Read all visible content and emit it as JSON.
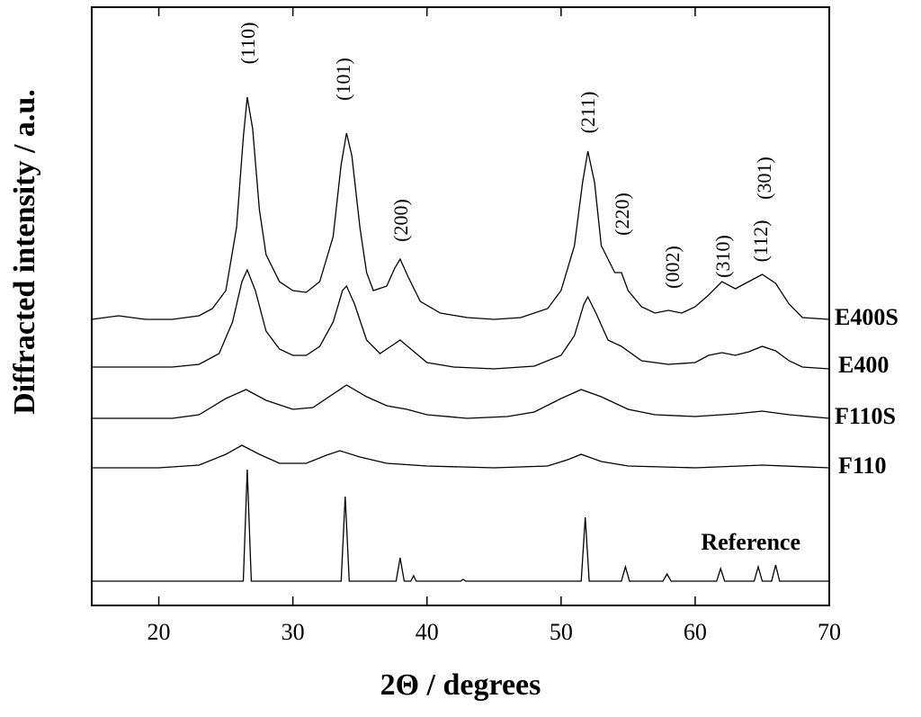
{
  "chart_data": {
    "type": "line",
    "xlabel": "2Θ / degrees",
    "ylabel": "Diffracted intensity / a.u.",
    "xlim": [
      15,
      70
    ],
    "xticks": [
      20,
      30,
      40,
      50,
      60,
      70
    ],
    "ylim": [
      0,
      665
    ],
    "color": "#000000",
    "annotations": [
      "(110)",
      "(101)",
      "(200)",
      "(211)",
      "(220)",
      "(002)",
      "(310)",
      "(112)",
      "(301)"
    ],
    "series": [
      {
        "name": "E400S",
        "x": [
          15,
          17,
          19,
          21,
          23,
          24,
          25,
          25.8,
          26.3,
          26.6,
          27,
          27.5,
          28,
          29,
          30,
          31,
          32,
          33,
          33.6,
          34,
          34.4,
          35,
          35.5,
          36,
          37,
          37.6,
          38,
          38.6,
          39.5,
          41,
          43,
          45,
          47,
          49,
          50,
          51,
          51.6,
          52,
          52.5,
          53,
          54,
          54.5,
          55,
          56,
          57,
          58,
          59,
          60,
          61,
          62,
          63,
          64,
          65,
          66,
          67,
          68,
          70
        ],
        "values": [
          318,
          322,
          318,
          318,
          322,
          330,
          350,
          420,
          520,
          565,
          530,
          440,
          390,
          360,
          350,
          348,
          360,
          410,
          490,
          525,
          500,
          420,
          370,
          350,
          355,
          375,
          385,
          365,
          338,
          325,
          320,
          318,
          320,
          330,
          350,
          400,
          470,
          505,
          470,
          400,
          370,
          370,
          350,
          332,
          325,
          328,
          325,
          332,
          345,
          360,
          352,
          360,
          368,
          358,
          335,
          320,
          318
        ]
      },
      {
        "name": "E400",
        "x": [
          15,
          18,
          21,
          23,
          24.5,
          25.5,
          26.2,
          26.6,
          27.2,
          28,
          29,
          30,
          31,
          32,
          33,
          33.7,
          34,
          34.6,
          35.5,
          36.5,
          37.5,
          38,
          38.8,
          40,
          42,
          45,
          48,
          50,
          51,
          51.7,
          52,
          52.6,
          53.5,
          54.5,
          56,
          58,
          60,
          61,
          62,
          63,
          64,
          65,
          66,
          67,
          68,
          70
        ],
        "values": [
          265,
          265,
          265,
          268,
          280,
          315,
          360,
          373,
          350,
          305,
          285,
          278,
          278,
          288,
          315,
          350,
          355,
          335,
          295,
          280,
          290,
          295,
          285,
          270,
          265,
          263,
          266,
          278,
          300,
          335,
          343,
          325,
          295,
          288,
          272,
          268,
          270,
          278,
          281,
          278,
          282,
          288,
          283,
          272,
          265,
          263
        ]
      },
      {
        "name": "F110S",
        "x": [
          15,
          18,
          21,
          23,
          25,
          26.5,
          28,
          30,
          31.5,
          33,
          34,
          35.5,
          37,
          38.5,
          40,
          43,
          46,
          48,
          50,
          51.5,
          53,
          55,
          57,
          60,
          63,
          65,
          67,
          70
        ],
        "values": [
          208,
          208,
          208,
          212,
          230,
          240,
          228,
          218,
          220,
          235,
          245,
          232,
          222,
          218,
          212,
          208,
          210,
          215,
          230,
          240,
          232,
          218,
          212,
          210,
          213,
          216,
          212,
          208
        ]
      },
      {
        "name": "F110",
        "x": [
          15,
          20,
          23,
          25,
          26.2,
          27.5,
          29,
          31,
          32.5,
          33.5,
          35,
          37,
          40,
          45,
          49,
          50.5,
          51.5,
          53,
          55,
          60,
          65,
          70
        ],
        "values": [
          153,
          153,
          156,
          168,
          178,
          168,
          158,
          158,
          167,
          172,
          165,
          158,
          155,
          153,
          155,
          162,
          168,
          160,
          155,
          153,
          156,
          153
        ]
      },
      {
        "name": "Reference",
        "x": [
          15,
          26.3,
          26.6,
          26.9,
          33.6,
          33.9,
          34.2,
          37.7,
          38,
          38.3,
          38.8,
          39,
          39.2,
          42.5,
          42.7,
          42.9,
          51.5,
          51.8,
          52.1,
          54.5,
          54.8,
          55.1,
          57.6,
          57.9,
          58.2,
          61.6,
          61.9,
          62.2,
          64.4,
          64.7,
          65,
          65.7,
          66,
          66.3,
          70
        ],
        "values": [
          27,
          27,
          151,
          27,
          27,
          121,
          27,
          27,
          53,
          27,
          27,
          33,
          27,
          27,
          29,
          27,
          27,
          98,
          27,
          27,
          43,
          27,
          27,
          35,
          27,
          27,
          41,
          27,
          27,
          43,
          27,
          27,
          45,
          27,
          27
        ]
      }
    ]
  }
}
